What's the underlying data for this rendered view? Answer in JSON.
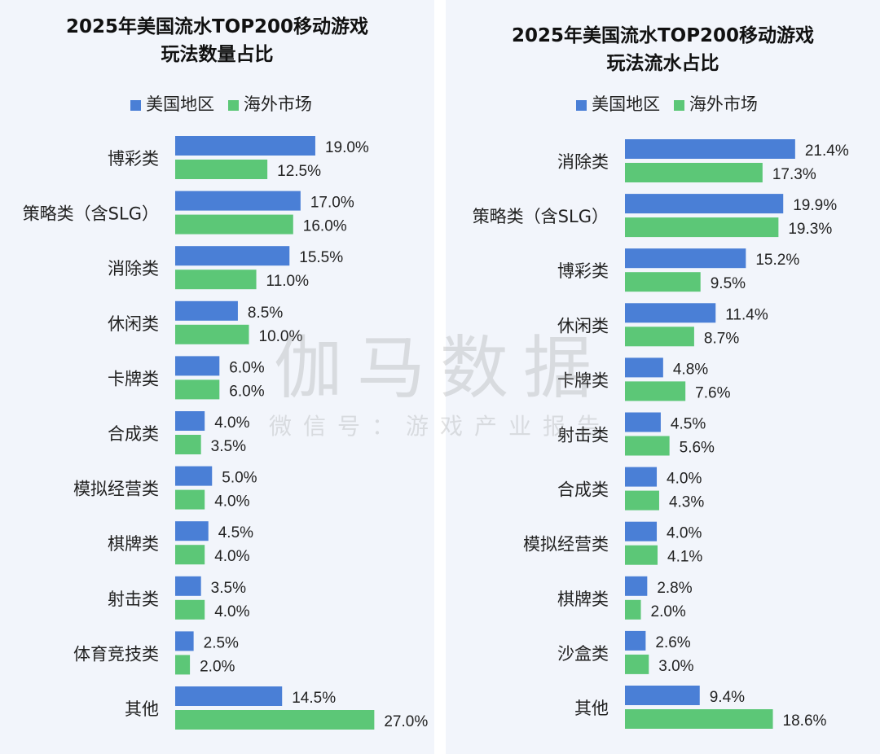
{
  "colors": {
    "us": "#4a7fd6",
    "overseas": "#5cc777"
  },
  "watermark": {
    "main": "伽马数据",
    "sub": "微信号：游戏产业报告"
  },
  "chart_data": [
    {
      "type": "bar",
      "orientation": "horizontal",
      "title": "2025年美国流水TOP200移动游戏玩法数量占比",
      "title_lines": [
        "2025年美国流水TOP200移动游戏",
        "玩法数量占比"
      ],
      "legend": [
        "美国地区",
        "海外市场"
      ],
      "legend_position": "top",
      "categories": [
        "博彩类",
        "策略类（含SLG）",
        "消除类",
        "休闲类",
        "卡牌类",
        "合成类",
        "模拟经营类",
        "棋牌类",
        "射击类",
        "体育竞技类",
        "其他"
      ],
      "series": [
        {
          "name": "美国地区",
          "values": [
            19.0,
            17.0,
            15.5,
            8.5,
            6.0,
            4.0,
            5.0,
            4.5,
            3.5,
            2.5,
            14.5
          ]
        },
        {
          "name": "海外市场",
          "values": [
            12.5,
            16.0,
            11.0,
            10.0,
            6.0,
            3.5,
            4.0,
            4.0,
            4.0,
            2.0,
            27.0
          ]
        }
      ],
      "value_format": "%",
      "grid": false
    },
    {
      "type": "bar",
      "orientation": "horizontal",
      "title": "2025年美国流水TOP200移动游戏玩法流水占比",
      "title_lines": [
        "2025年美国流水TOP200移动游戏",
        "玩法流水占比"
      ],
      "legend": [
        "美国地区",
        "海外市场"
      ],
      "legend_position": "top",
      "categories": [
        "消除类",
        "策略类（含SLG）",
        "博彩类",
        "休闲类",
        "卡牌类",
        "射击类",
        "合成类",
        "模拟经营类",
        "棋牌类",
        "沙盒类",
        "其他"
      ],
      "series": [
        {
          "name": "美国地区",
          "values": [
            21.4,
            19.9,
            15.2,
            11.4,
            4.8,
            4.5,
            4.0,
            4.0,
            2.8,
            2.6,
            9.4
          ]
        },
        {
          "name": "海外市场",
          "values": [
            17.3,
            19.3,
            9.5,
            8.7,
            7.6,
            5.6,
            4.3,
            4.1,
            2.0,
            3.0,
            18.6
          ]
        }
      ],
      "value_format": "%",
      "grid": false
    }
  ]
}
